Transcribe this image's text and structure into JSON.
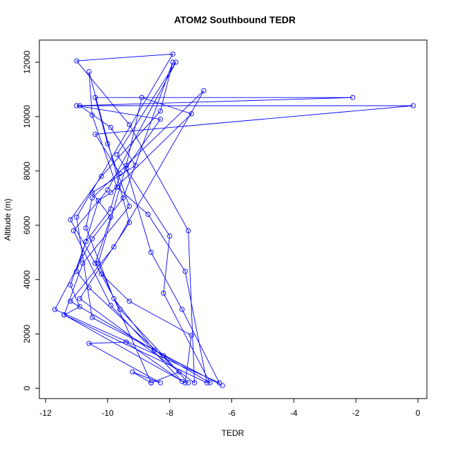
{
  "chart_data": {
    "type": "line",
    "markers": true,
    "title": "ATOM2 Southbound TEDR",
    "x_label": "TEDR",
    "y_label": "Altitude (m)",
    "color": "#0000ff",
    "xlim": [
      -12.2,
      0.29
    ],
    "ylim": [
      -380,
      12815
    ],
    "xticks": [
      -12,
      -10,
      -8,
      -6,
      -4,
      -2,
      0
    ],
    "yticks": [
      0,
      2000,
      4000,
      6000,
      8000,
      10000,
      12000
    ],
    "x": [
      -7.4,
      -8.2,
      -9.6,
      -10.4,
      -9.9,
      -10.5,
      -9.1,
      -9.9,
      -10.9,
      -0.15,
      -10.4,
      -9.6,
      -9.9,
      -10.7,
      -11.2,
      -10.9,
      -11.4,
      -7.5,
      -7.3,
      -9.3,
      -10.2,
      -11.2,
      -10.2,
      -8.3,
      -7.9,
      -9.5,
      -10.5,
      -11.7,
      -6.4,
      -7.6,
      -8.6,
      -9.4,
      -8.3,
      -11,
      -2.1,
      -10.4,
      -10,
      -9.3,
      -10.8,
      -11.4,
      -6.8,
      -7.5,
      -8.7,
      -9.7,
      -10.5,
      -10.6,
      -9.3,
      -10.9,
      -7.2,
      -7.4,
      -9.3,
      -11,
      -7.9,
      -11,
      -10.5,
      -6.3,
      -8.5,
      -9.8,
      -10.7,
      -10.5,
      -6.9,
      -9.8,
      -11.2,
      -6.7,
      -8.2,
      -8.0,
      -9.7,
      -7.8,
      -10,
      -11.1,
      -9.9,
      -7.6,
      -9.4,
      -10.6,
      -8.3,
      -9.2,
      -8.6,
      -10.3,
      -9.4,
      -8.9,
      -7.3,
      -9.9,
      -10.3,
      -11,
      -10.6,
      -7.7,
      -8.6
    ],
    "values": [
      200,
      1200,
      2900,
      4600,
      6300,
      7200,
      8200,
      9600,
      10400,
      10400,
      9350,
      7900,
      6600,
      5400,
      3800,
      3000,
      2700,
      200,
      1950,
      3200,
      4200,
      6200,
      7800,
      10200,
      12000,
      7000,
      5500,
      2900,
      200,
      2900,
      5000,
      8100,
      9900,
      10400,
      10700,
      10700,
      9000,
      6700,
      4600,
      2700,
      200,
      4300,
      6400,
      7400,
      10050,
      11650,
      6100,
      3300,
      200,
      5800,
      9700,
      12050,
      12300,
      6300,
      2600,
      100,
      1400,
      3300,
      5900,
      7000,
      10950,
      5200,
      3200,
      200,
      3500,
      5600,
      8600,
      12000,
      7300,
      5800,
      3050,
      250,
      1700,
      1650,
      200,
      600,
      200,
      4600,
      8200,
      10700,
      10100,
      7200,
      6900,
      4300,
      3700,
      600,
      200
    ]
  }
}
